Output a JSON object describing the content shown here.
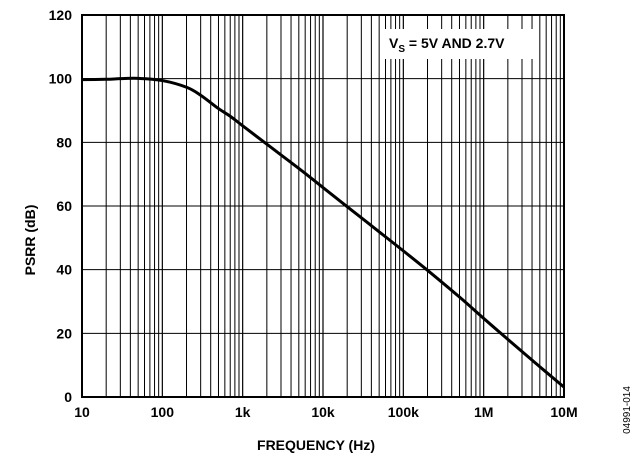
{
  "chart_data": {
    "type": "line",
    "title": "",
    "xlabel": "FREQUENCY (Hz)",
    "ylabel": "PSRR (dB)",
    "x_scale": "log",
    "xlim": [
      10,
      10000000
    ],
    "ylim": [
      0,
      120
    ],
    "grid": true,
    "x_ticks": [
      10,
      100,
      1000,
      10000,
      100000,
      1000000,
      10000000
    ],
    "x_tick_labels": [
      "10",
      "100",
      "1k",
      "10k",
      "100k",
      "1M",
      "10M"
    ],
    "y_ticks": [
      0,
      20,
      40,
      60,
      80,
      100,
      120
    ],
    "y_tick_labels": [
      "0",
      "20",
      "40",
      "60",
      "80",
      "100",
      "120"
    ],
    "annotation": {
      "main": "V",
      "sub": "S",
      "rest": " = 5V AND 2.7V"
    },
    "figure_code": "04991-014",
    "series": [
      {
        "color": "#000000",
        "x": [
          10,
          20,
          30,
          50,
          100,
          200,
          300,
          500,
          700,
          1000,
          2000,
          5000,
          10000,
          20000,
          50000,
          100000,
          200000,
          500000,
          1000000,
          2000000,
          5000000,
          10000000
        ],
        "y": [
          99.7,
          99.8,
          100,
          100.1,
          99.4,
          97.3,
          94.8,
          90.6,
          88.2,
          85.2,
          79.4,
          71.8,
          65.8,
          59.8,
          51.9,
          45.9,
          39.8,
          31.4,
          24.7,
          18.1,
          9.5,
          3.1
        ]
      }
    ]
  }
}
